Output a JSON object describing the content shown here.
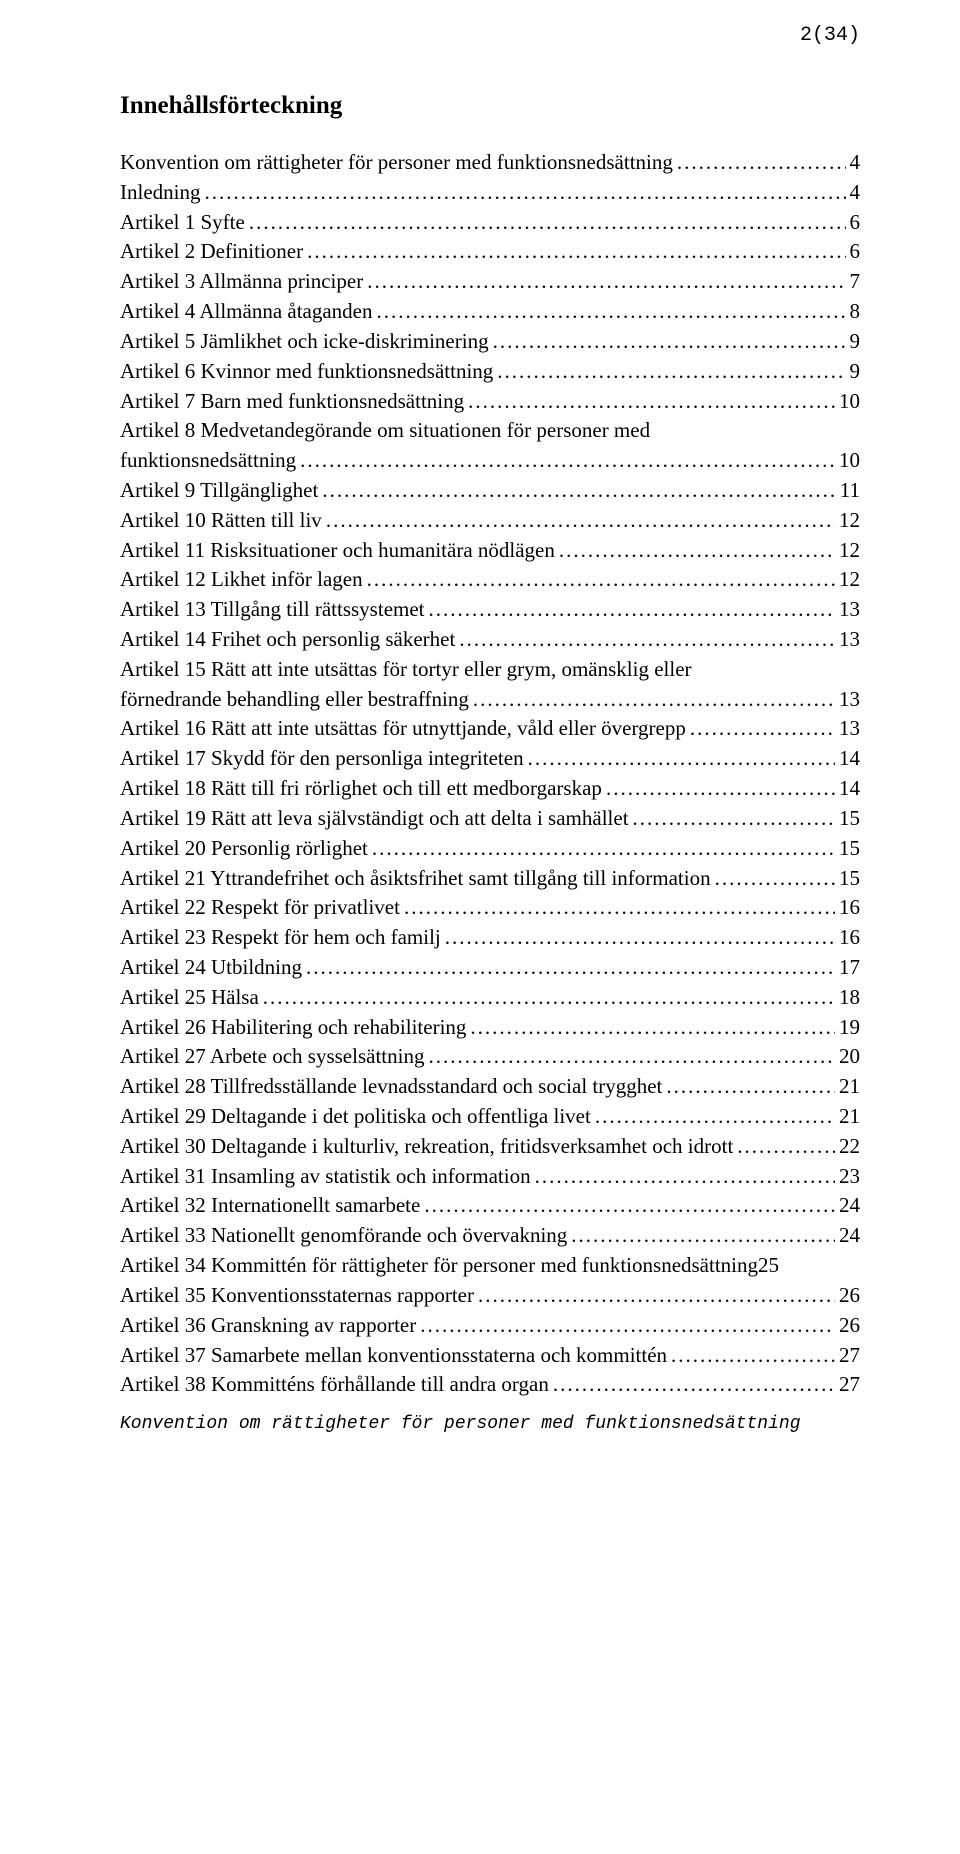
{
  "page_number": "2(34)",
  "heading": "Innehållsförteckning",
  "footer": "Konvention om rättigheter för personer med funktionsnedsättning",
  "toc": [
    {
      "text": "Konvention om rättigheter för personer med funktionsnedsättning",
      "page": "4"
    },
    {
      "text": "Inledning",
      "page": "4"
    },
    {
      "text": "Artikel 1 Syfte",
      "page": "6"
    },
    {
      "text": "Artikel 2 Definitioner",
      "page": "6"
    },
    {
      "text": "Artikel 3 Allmänna principer",
      "page": "7"
    },
    {
      "text": "Artikel 4 Allmänna åtaganden",
      "page": "8"
    },
    {
      "text": "Artikel 5 Jämlikhet och icke-diskriminering",
      "page": "9"
    },
    {
      "text": "Artikel 6 Kvinnor med funktionsnedsättning",
      "page": "9"
    },
    {
      "text": "Artikel 7 Barn med funktionsnedsättning",
      "page": "10"
    },
    {
      "prefix": "Artikel 8 Medvetandegörande om situationen för personer med",
      "text": "funktionsnedsättning",
      "page": "10"
    },
    {
      "text": "Artikel 9 Tillgänglighet",
      "page": "11"
    },
    {
      "text": "Artikel 10 Rätten till liv",
      "page": "12"
    },
    {
      "text": "Artikel 11 Risksituationer och humanitära nödlägen",
      "page": "12"
    },
    {
      "text": "Artikel 12 Likhet inför lagen",
      "page": "12"
    },
    {
      "text": "Artikel 13 Tillgång till rättssystemet",
      "page": "13"
    },
    {
      "text": "Artikel 14 Frihet och personlig säkerhet",
      "page": "13"
    },
    {
      "prefix": "Artikel 15 Rätt att inte utsättas för tortyr eller grym, omänsklig eller",
      "text": "förnedrande behandling eller bestraffning",
      "page": "13"
    },
    {
      "text": "Artikel 16 Rätt att inte utsättas för utnyttjande, våld eller övergrepp",
      "page": "13"
    },
    {
      "text": "Artikel 17 Skydd för den personliga integriteten",
      "page": "14"
    },
    {
      "text": "Artikel 18 Rätt till fri rörlighet och till ett medborgarskap",
      "page": "14"
    },
    {
      "text": "Artikel 19 Rätt att leva självständigt och att delta i samhället",
      "page": "15"
    },
    {
      "text": "Artikel 20 Personlig rörlighet",
      "page": "15"
    },
    {
      "text": "Artikel 21 Yttrandefrihet och åsiktsfrihet samt tillgång till information",
      "page": "15"
    },
    {
      "text": "Artikel 22 Respekt för privatlivet",
      "page": "16"
    },
    {
      "text": "Artikel 23 Respekt för hem och familj",
      "page": "16"
    },
    {
      "text": "Artikel 24 Utbildning",
      "page": "17"
    },
    {
      "text": "Artikel 25 Hälsa",
      "page": "18"
    },
    {
      "text": "Artikel 26 Habilitering och rehabilitering",
      "page": "19"
    },
    {
      "text": "Artikel 27 Arbete och sysselsättning",
      "page": "20"
    },
    {
      "text": "Artikel 28 Tillfredsställande levnadsstandard och social trygghet",
      "page": "21"
    },
    {
      "text": "Artikel 29 Deltagande i det politiska och offentliga livet",
      "page": "21"
    },
    {
      "text": "Artikel 30 Deltagande i kulturliv, rekreation, fritidsverksamhet och idrott",
      "page": "22"
    },
    {
      "text": "Artikel 31 Insamling av statistik och information",
      "page": "23"
    },
    {
      "text": "Artikel 32 Internationellt samarbete",
      "page": "24"
    },
    {
      "text": "Artikel 33 Nationellt genomförande och övervakning",
      "page": "24"
    },
    {
      "text": "Artikel 34 Kommittén för rättigheter för personer med funktionsnedsättning",
      "page": "25",
      "nodots": true
    },
    {
      "text": "Artikel 35 Konventionsstaternas rapporter",
      "page": "26"
    },
    {
      "text": "Artikel 36 Granskning av rapporter",
      "page": "26"
    },
    {
      "text": "Artikel 37 Samarbete mellan konventionsstaterna och kommittén",
      "page": "27"
    },
    {
      "text": "Artikel 38 Kommitténs förhållande till andra organ",
      "page": "27"
    }
  ]
}
